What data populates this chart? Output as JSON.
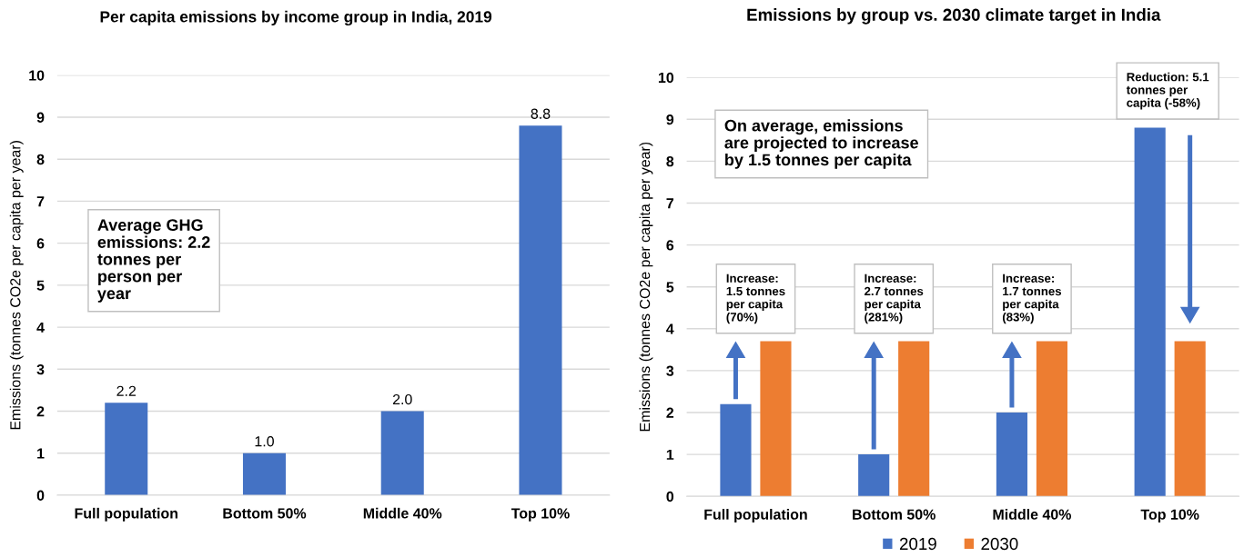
{
  "chart_data": [
    {
      "type": "bar",
      "title": "Per capita emissions by income group in India, 2019",
      "ylabel": "Emissions (tonnes CO2e per capita per year)",
      "categories": [
        "Full population",
        "Bottom 50%",
        "Middle 40%",
        "Top 10%"
      ],
      "values": [
        2.2,
        1.0,
        2.0,
        8.8
      ],
      "color": "#4472c4",
      "value_labels": [
        "2.2",
        "1.0",
        "2.0",
        "8.8"
      ],
      "ylim": [
        0,
        10
      ],
      "yticks": [
        0,
        1,
        2,
        3,
        4,
        5,
        6,
        7,
        8,
        9,
        10
      ],
      "grid": "y",
      "annotations": [
        "Average GHG\nemissions: 2.2\ntonnes per\nperson per\nyear"
      ]
    },
    {
      "type": "bar",
      "title": "Emissions by group vs. 2030 climate target in India",
      "ylabel": "Emissions (tonnes CO2e per capita per year)",
      "categories": [
        "Full population",
        "Bottom 50%",
        "Middle 40%",
        "Top 10%"
      ],
      "series": [
        {
          "name": "2019",
          "color": "#4472c4",
          "values": [
            2.2,
            1.0,
            2.0,
            8.8
          ]
        },
        {
          "name": "2030",
          "color": "#ed7d31",
          "values": [
            3.7,
            3.7,
            3.7,
            3.7
          ]
        }
      ],
      "ylim": [
        0,
        10
      ],
      "yticks": [
        0,
        1,
        2,
        3,
        4,
        5,
        6,
        7,
        8,
        9,
        10
      ],
      "grid": "y",
      "legend": "bottom",
      "annotations": [
        "On average, emissions\nare projected to increase\nby 1.5 tonnes per capita",
        {
          "text": "Increase:\n1.5 tonnes\nper capita\n(70%)",
          "x": "Full population",
          "y": 3.7
        },
        {
          "text": "Increase:\n2.7 tonnes\nper capita\n(281%)",
          "x": "Bottom 50%",
          "y": 3.7
        },
        {
          "text": "Increase:\n1.7 tonnes\nper capita\n(83%)",
          "x": "Middle 40%",
          "y": 3.7
        },
        "Reduction: 5.1\ntonnes per\ncapita (-58%)"
      ]
    }
  ]
}
